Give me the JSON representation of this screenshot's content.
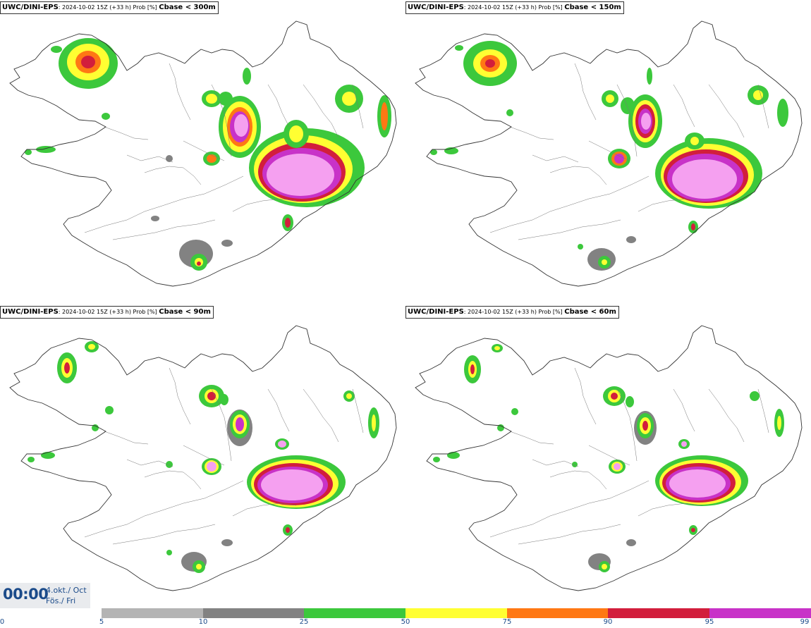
{
  "panels": [
    {
      "model": "UWC/DINI-EPS",
      "meta": ": 2024-10-02 15Z (+33 h) Prob [%] ",
      "field": "Cbase < 300m"
    },
    {
      "model": "UWC/DINI-EPS",
      "meta": ": 2024-10-02 15Z (+33 h) Prob [%] ",
      "field": "Cbase < 150m"
    },
    {
      "model": "UWC/DINI-EPS",
      "meta": ": 2024-10-02 15Z (+33 h) Prob [%] ",
      "field": "Cbase < 90m"
    },
    {
      "model": "UWC/DINI-EPS",
      "meta": ": 2024-10-02 15Z (+33 h) Prob [%] ",
      "field": "Cbase < 60m"
    }
  ],
  "time": {
    "clock": "00:00",
    "date_line1": "4.okt./ Oct",
    "date_line2": "Fös./ Fri"
  },
  "colorbar": {
    "ticks": [
      "0",
      "5",
      "10",
      "25",
      "50",
      "75",
      "90",
      "95",
      "99"
    ],
    "colors": [
      "#b4b4b4",
      "#828282",
      "#3cc83c",
      "#ffff32",
      "#ff7814",
      "#d21e3c",
      "#c832c8",
      "#f5a0f0"
    ]
  }
}
